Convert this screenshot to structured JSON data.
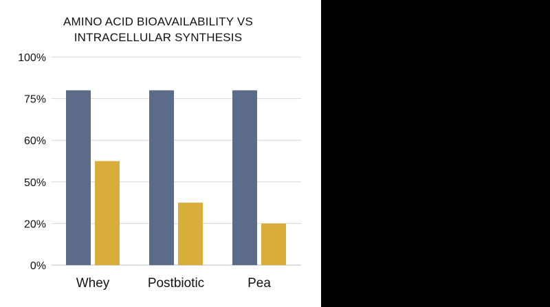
{
  "chart_data": {
    "type": "bar",
    "title_lines": [
      "AMINO ACID BIOAVAILABILITY VS",
      "INTRACELLULAR SYNTHESIS"
    ],
    "categories": [
      "Whey",
      "Postbiotic",
      "Pea"
    ],
    "tick_labels": [
      "0%",
      "20%",
      "50%",
      "60%",
      "75%",
      "100%"
    ],
    "series": [
      {
        "values": [
          4.2,
          4.2,
          4.2
        ],
        "color": "#5b6b88"
      },
      {
        "values": [
          2.5,
          1.5,
          1.0
        ],
        "color": "#d9ad3a"
      }
    ],
    "ylim": [
      0,
      5
    ],
    "grid": true,
    "legend": "none"
  }
}
